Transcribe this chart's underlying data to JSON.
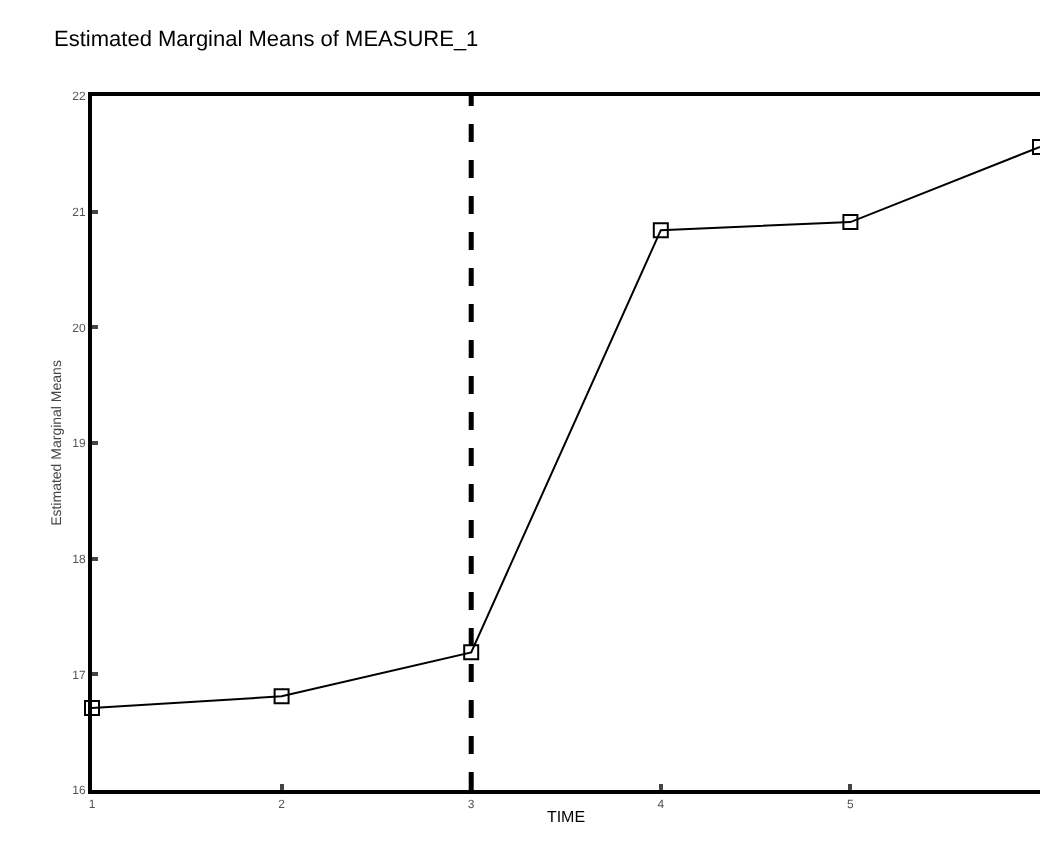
{
  "chart_data": {
    "type": "line",
    "title": "Estimated Marginal Means of MEASURE_1",
    "xlabel": "TIME",
    "ylabel": "Estimated Marginal Means",
    "x": [
      1,
      2,
      3,
      4,
      5,
      6
    ],
    "values": [
      16.71,
      16.81,
      17.19,
      20.84,
      20.91,
      21.56
    ],
    "color": "#000000",
    "marker": "square",
    "line_style": "solid",
    "xlim": [
      1,
      6
    ],
    "xticks": [
      1,
      2,
      3,
      4,
      5
    ],
    "ylim": [
      16,
      22
    ],
    "yticks": [
      16,
      17,
      18,
      19,
      20,
      21,
      22
    ],
    "grid": false,
    "legend": false,
    "ref_lines": [
      {
        "axis": "x",
        "value": 3,
        "color": "#000000",
        "line_style": "dashed"
      }
    ]
  }
}
